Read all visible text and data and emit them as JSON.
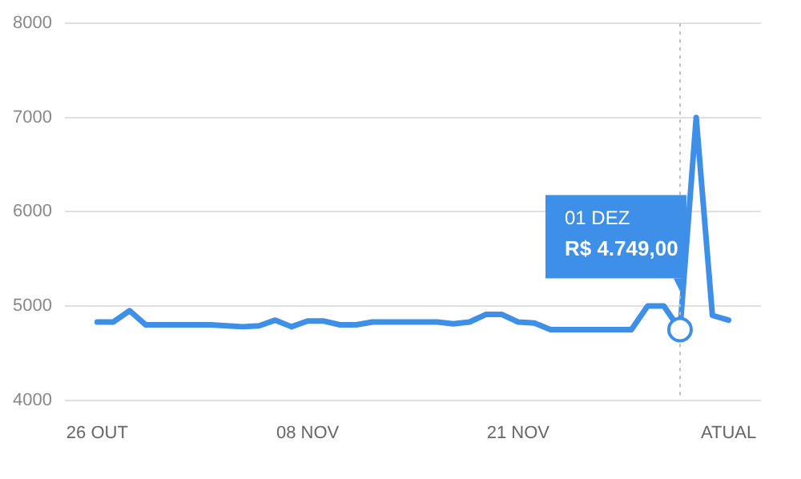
{
  "chart_data": {
    "type": "line",
    "x": [
      "--10-26",
      "--10-27",
      "--10-28",
      "--10-29",
      "--10-30",
      "--10-31",
      "--11-01",
      "--11-02",
      "--11-03",
      "--11-04",
      "--11-05",
      "--11-06",
      "--11-07",
      "--11-08",
      "--11-09",
      "--11-10",
      "--11-11",
      "--11-12",
      "--11-13",
      "--11-14",
      "--11-15",
      "--11-16",
      "--11-17",
      "--11-18",
      "--11-19",
      "--11-20",
      "--11-21",
      "--11-22",
      "--11-23",
      "--11-24",
      "--11-25",
      "--11-26",
      "--11-27",
      "--11-28",
      "--11-29",
      "--11-30",
      "--12-01",
      "--12-02",
      "--12-03",
      "--12-04"
    ],
    "series": [
      {
        "color": "#3d8fe8",
        "values": [
          4830,
          4830,
          4950,
          4800,
          4800,
          4800,
          4800,
          4800,
          4790,
          4780,
          4790,
          4850,
          4780,
          4840,
          4840,
          4800,
          4800,
          4830,
          4830,
          4830,
          4830,
          4830,
          4810,
          4830,
          4910,
          4910,
          4830,
          4820,
          4750,
          4750,
          4750,
          4750,
          4750,
          4750,
          5000,
          5000,
          4749,
          7000,
          4900,
          4850
        ]
      }
    ],
    "xlim": [
      "--10-24",
      "--12-06"
    ],
    "xticks": [
      {
        "value": "--10-26",
        "label": "26 OUT"
      },
      {
        "value": "--11-08",
        "label": "08 NOV"
      },
      {
        "value": "--11-21",
        "label": "21 NOV"
      },
      {
        "value": "--12-04",
        "label": "ATUAL"
      }
    ],
    "ylim": [
      4000,
      8000
    ],
    "yticks": [
      4000,
      5000,
      6000,
      7000,
      8000
    ],
    "grid": "y",
    "legend": false,
    "marker": "none",
    "line_style": "solid",
    "ref_lines": [
      {
        "axis": "x",
        "value": "--12-01",
        "color": "#bdbdbd",
        "line_style": "dotted"
      }
    ],
    "annotations": [
      "01 DEZ",
      "R$ 4.749,00"
    ]
  }
}
